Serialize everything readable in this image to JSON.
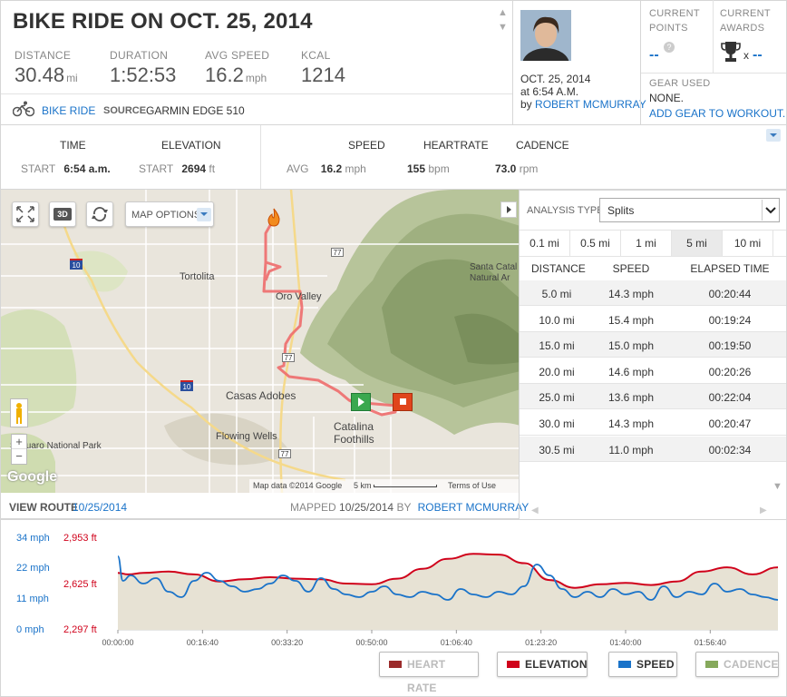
{
  "header": {
    "title": "BIKE RIDE ON OCT. 25, 2014",
    "stats": [
      {
        "label": "DISTANCE",
        "value": "30.48",
        "unit": "mi"
      },
      {
        "label": "DURATION",
        "value": "1:52:53",
        "unit": ""
      },
      {
        "label": "AVG SPEED",
        "value": "16.2",
        "unit": "mph"
      },
      {
        "label": "KCAL",
        "value": "1214",
        "unit": ""
      }
    ],
    "activity_type": "BIKE RIDE",
    "source_label": "SOURCE",
    "source_value": "GARMIN EDGE 510"
  },
  "profile": {
    "date": "OCT. 25, 2014",
    "time": "at 6:54 A.M.",
    "by_label": "by",
    "author": "ROBERT MCMURRAY"
  },
  "points": {
    "label_line1": "CURRENT",
    "label_line2": "POINTS",
    "value": "--",
    "help": "?"
  },
  "awards": {
    "label_line1": "CURRENT",
    "label_line2": "AWARDS",
    "multiplier": "x",
    "value": "--"
  },
  "gear": {
    "label": "GEAR USED",
    "value": "NONE.",
    "add_link": "ADD GEAR TO WORKOUT."
  },
  "summary": {
    "time_header": "TIME",
    "elevation_header": "ELEVATION",
    "start_label": "START",
    "start_time": "6:54 a.m.",
    "start_elevation": "2694",
    "elevation_unit": "ft",
    "speed_header": "SPEED",
    "heartrate_header": "HEARTRATE",
    "cadence_header": "CADENCE",
    "avg_label": "AVG",
    "avg_speed": "16.2",
    "speed_unit": "mph",
    "avg_heartrate": "155",
    "heartrate_unit": "bpm",
    "avg_cadence": "73.0",
    "cadence_unit": "rpm"
  },
  "map": {
    "options_label": "MAP OPTIONS",
    "btn_3d": "3D",
    "labels": {
      "tortolita": "Tortolita",
      "oro_valley": "Oro Valley",
      "casas_adobes": "Casas Adobes",
      "catalina_foothills_1": "Catalina",
      "catalina_foothills_2": "Foothills",
      "flowing_wells": "Flowing Wells",
      "santa_catalina_1": "Santa Catal",
      "santa_catalina_2": "Natural Ar",
      "saguaro": "Saguaro National Park",
      "hwy_77a": "77",
      "hwy_77b": "77",
      "hwy_77c": "77",
      "i10a": "10",
      "i10b": "10"
    },
    "attribution": "Map data ©2014 Google",
    "scale": "5 km",
    "terms": "Terms of Use",
    "google": "Google",
    "zoom_in": "+",
    "zoom_out": "−"
  },
  "route": {
    "view_label": "VIEW ROUTE",
    "view_date": "10/25/2014",
    "mapped_label": "MAPPED",
    "mapped_date": "10/25/2014",
    "by_label": "BY",
    "mapped_by": "ROBERT MCMURRAY"
  },
  "analysis": {
    "type_label": "ANALYSIS TYPE:",
    "type_value": "Splits",
    "distances": [
      "0.1 mi",
      "0.5 mi",
      "1 mi",
      "5 mi",
      "10 mi"
    ],
    "active_distance": "5 mi",
    "columns": [
      "DISTANCE",
      "SPEED",
      "ELAPSED TIME"
    ],
    "rows": [
      [
        "5.0 mi",
        "14.3 mph",
        "00:20:44"
      ],
      [
        "10.0 mi",
        "15.4 mph",
        "00:19:24"
      ],
      [
        "15.0 mi",
        "15.0 mph",
        "00:19:50"
      ],
      [
        "20.0 mi",
        "14.6 mph",
        "00:20:26"
      ],
      [
        "25.0 mi",
        "13.6 mph",
        "00:22:04"
      ],
      [
        "30.0 mi",
        "14.3 mph",
        "00:20:47"
      ],
      [
        "30.5 mi",
        "11.0 mph",
        "00:02:34"
      ]
    ]
  },
  "chart_data": {
    "type": "line",
    "x_ticks": [
      "00:00:00",
      "00:16:40",
      "00:33:20",
      "00:50:00",
      "01:06:40",
      "01:23:20",
      "01:40:00",
      "01:56:40"
    ],
    "x_range_seconds": [
      0,
      7800
    ],
    "speed_axis": {
      "ticks": [
        "34 mph",
        "22 mph",
        "11 mph",
        "0 mph"
      ],
      "range": [
        0,
        34
      ]
    },
    "elevation_axis": {
      "ticks": [
        "2,953 ft",
        "2,625 ft",
        "2,297 ft"
      ],
      "range": [
        2297,
        2953
      ]
    },
    "series": [
      {
        "name": "ELEVATION",
        "color": "#d0021b",
        "x_seconds": [
          0,
          120,
          300,
          600,
          900,
          1200,
          1500,
          1800,
          2100,
          2400,
          2700,
          3000,
          3300,
          3600,
          3900,
          4200,
          4500,
          4800,
          5100,
          5400,
          5700,
          6000,
          6300,
          6600,
          6900,
          7200,
          7500,
          7800
        ],
        "values": [
          2700,
          2690,
          2700,
          2710,
          2690,
          2640,
          2655,
          2670,
          2660,
          2655,
          2625,
          2620,
          2660,
          2730,
          2800,
          2835,
          2830,
          2770,
          2650,
          2595,
          2620,
          2630,
          2615,
          2640,
          2710,
          2740,
          2690,
          2740
        ]
      },
      {
        "name": "SPEED",
        "color": "#1a73c9",
        "x_seconds": [
          0,
          60,
          150,
          300,
          450,
          600,
          750,
          900,
          1050,
          1200,
          1350,
          1500,
          1650,
          1800,
          1950,
          2100,
          2250,
          2400,
          2550,
          2700,
          2850,
          3000,
          3150,
          3300,
          3450,
          3600,
          3750,
          3900,
          4050,
          4200,
          4350,
          4500,
          4650,
          4800,
          4950,
          5100,
          5250,
          5400,
          5550,
          5700,
          5850,
          6000,
          6150,
          6300,
          6450,
          6600,
          6750,
          6900,
          7050,
          7200,
          7350,
          7500,
          7650,
          7800
        ],
        "values": [
          27,
          18,
          20,
          17,
          19,
          14,
          12,
          18,
          21,
          18,
          16,
          14,
          15,
          17,
          20,
          18,
          14,
          19,
          15,
          13,
          12,
          14,
          16,
          13,
          12,
          14,
          13,
          11,
          15,
          13,
          12,
          14,
          13,
          16,
          24,
          20,
          15,
          12,
          14,
          12,
          15,
          13,
          14,
          11,
          16,
          12,
          14,
          13,
          17,
          14,
          15,
          13,
          12,
          11
        ]
      },
      {
        "name": "HEART RATE",
        "color": "#8b2222",
        "values": []
      },
      {
        "name": "CADENCE",
        "color": "#7ea35c",
        "values": []
      }
    ],
    "legend": [
      {
        "label": "HEART RATE",
        "color": "#9b2b2b",
        "active": false
      },
      {
        "label": "ELEVATION",
        "color": "#d0021b",
        "active": true
      },
      {
        "label": "SPEED",
        "color": "#1a73c9",
        "active": true
      },
      {
        "label": "CADENCE",
        "color": "#86a95c",
        "active": false
      }
    ]
  }
}
